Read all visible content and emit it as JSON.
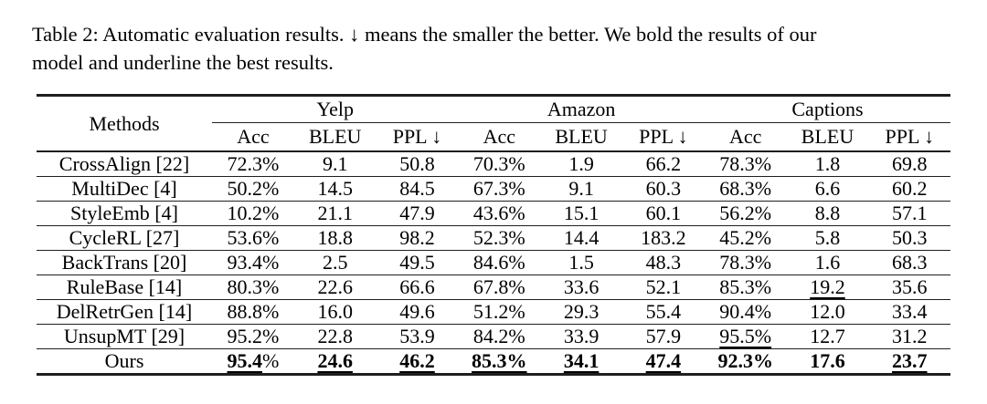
{
  "colors": {
    "text": "#000000",
    "rule": "#1f1f1f",
    "background": "#ffffff"
  },
  "caption": {
    "line1": "Table 2: Automatic evaluation results. ↓ means the smaller the better. We bold the results of our",
    "line2": "model and underline the best results."
  },
  "table": {
    "methods_label": "Methods",
    "groups": [
      {
        "label": "Yelp",
        "columns": [
          "Acc",
          "BLEU",
          "PPL ↓"
        ]
      },
      {
        "label": "Amazon",
        "columns": [
          "Acc",
          "BLEU",
          "PPL ↓"
        ]
      },
      {
        "label": "Captions",
        "columns": [
          "Acc",
          "BLEU",
          "PPL ↓"
        ]
      }
    ],
    "rows": [
      {
        "method": "CrossAlign [22]",
        "cells": [
          {
            "text": "72.3%"
          },
          {
            "text": "9.1"
          },
          {
            "text": "50.8"
          },
          {
            "text": "70.3%"
          },
          {
            "text": "1.9"
          },
          {
            "text": "66.2"
          },
          {
            "text": "78.3%"
          },
          {
            "text": "1.8"
          },
          {
            "text": "69.8"
          }
        ]
      },
      {
        "method": "MultiDec [4]",
        "cells": [
          {
            "text": "50.2%"
          },
          {
            "text": "14.5"
          },
          {
            "text": "84.5"
          },
          {
            "text": "67.3%"
          },
          {
            "text": "9.1"
          },
          {
            "text": "60.3"
          },
          {
            "text": "68.3%"
          },
          {
            "text": "6.6"
          },
          {
            "text": "60.2"
          }
        ]
      },
      {
        "method": "StyleEmb [4]",
        "cells": [
          {
            "text": "10.2%"
          },
          {
            "text": "21.1"
          },
          {
            "text": "47.9"
          },
          {
            "text": "43.6%"
          },
          {
            "text": "15.1"
          },
          {
            "text": "60.1"
          },
          {
            "text": "56.2%"
          },
          {
            "text": "8.8"
          },
          {
            "text": "57.1"
          }
        ]
      },
      {
        "method": "CycleRL [27]",
        "cells": [
          {
            "text": "53.6%"
          },
          {
            "text": "18.8"
          },
          {
            "text": "98.2"
          },
          {
            "text": "52.3%"
          },
          {
            "text": "14.4"
          },
          {
            "text": "183.2"
          },
          {
            "text": "45.2%"
          },
          {
            "text": "5.8"
          },
          {
            "text": "50.3"
          }
        ]
      },
      {
        "method": "BackTrans [20]",
        "cells": [
          {
            "text": "93.4%"
          },
          {
            "text": "2.5"
          },
          {
            "text": "49.5"
          },
          {
            "text": "84.6%"
          },
          {
            "text": "1.5"
          },
          {
            "text": "48.3"
          },
          {
            "text": "78.3%"
          },
          {
            "text": "1.6"
          },
          {
            "text": "68.3"
          }
        ]
      },
      {
        "method": "RuleBase [14]",
        "cells": [
          {
            "text": "80.3%"
          },
          {
            "text": "22.6"
          },
          {
            "text": "66.6"
          },
          {
            "text": "67.8%"
          },
          {
            "text": "33.6"
          },
          {
            "text": "52.1"
          },
          {
            "text": "85.3%"
          },
          {
            "text": "19.2",
            "underline": true
          },
          {
            "text": "35.6"
          }
        ]
      },
      {
        "method": "DelRetrGen [14]",
        "cells": [
          {
            "text": "88.8%"
          },
          {
            "text": "16.0"
          },
          {
            "text": "49.6"
          },
          {
            "text": "51.2%"
          },
          {
            "text": "29.3"
          },
          {
            "text": "55.4"
          },
          {
            "text": "90.4%"
          },
          {
            "text": "12.0"
          },
          {
            "text": "33.4"
          }
        ]
      },
      {
        "method": "UnsupMT [29]",
        "cells": [
          {
            "text": "95.2%"
          },
          {
            "text": "22.8"
          },
          {
            "text": "53.9"
          },
          {
            "text": "84.2%"
          },
          {
            "text": "33.9"
          },
          {
            "text": "57.9"
          },
          {
            "text": "95.5%",
            "underline": true
          },
          {
            "text": "12.7"
          },
          {
            "text": "31.2"
          }
        ]
      },
      {
        "method": "Ours",
        "cells": [
          {
            "text": "95.4",
            "suffix": "%",
            "bold": true,
            "underline": true
          },
          {
            "text": "24.6",
            "bold": true,
            "underline": true
          },
          {
            "text": "46.2",
            "bold": true,
            "underline": true
          },
          {
            "text": "85.3%",
            "bold": true,
            "underline": true
          },
          {
            "text": "34.1",
            "bold": true,
            "underline": true
          },
          {
            "text": "47.4",
            "bold": true,
            "underline": true
          },
          {
            "text": "92.3%",
            "bold": true
          },
          {
            "text": "17.6",
            "bold": true
          },
          {
            "text": "23.7",
            "bold": true,
            "underline": true
          }
        ]
      }
    ]
  }
}
